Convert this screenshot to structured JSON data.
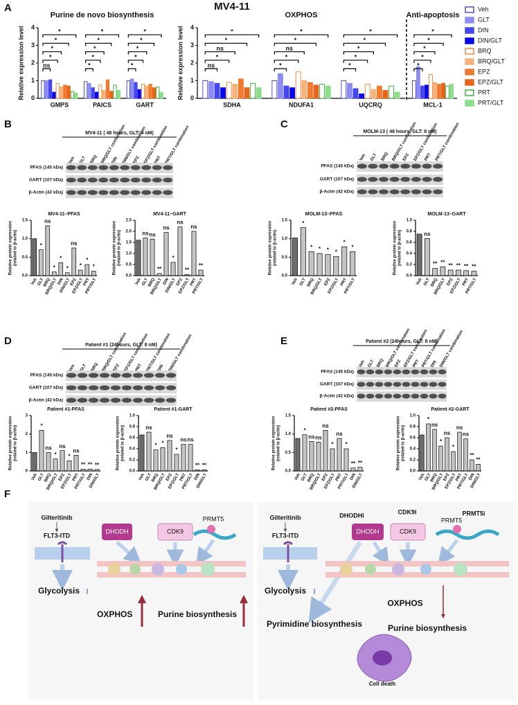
{
  "figure_title": "MV4-11",
  "panel_labels": [
    "A",
    "B",
    "C",
    "D",
    "E",
    "F"
  ],
  "chart_data": [
    {
      "type": "grouped_bar",
      "title": "Purine de novo biosynthesis",
      "ylabel": "Relative expression level",
      "categories": [
        "GMPS",
        "PAICS",
        "GART"
      ],
      "ylim": [
        0,
        4
      ],
      "yticks": [
        0,
        1,
        2,
        3,
        4
      ],
      "legend": "right",
      "series": [
        {
          "name": "Veh",
          "color": "#4b4bd8",
          "hollow": true,
          "values": [
            1.0,
            0.95,
            1.0
          ]
        },
        {
          "name": "GLT",
          "color": "#8c8cf2",
          "hollow": false,
          "values": [
            1.0,
            0.85,
            1.1
          ]
        },
        {
          "name": "DIN",
          "color": "#4646f0",
          "hollow": false,
          "values": [
            1.05,
            0.6,
            0.9
          ]
        },
        {
          "name": "DIN/GLT",
          "color": "#0a0ae6",
          "hollow": false,
          "values": [
            0.35,
            0.35,
            0.5
          ]
        },
        {
          "name": "BRQ",
          "color": "#f08a3c",
          "hollow": true,
          "values": [
            0.85,
            0.75,
            0.8
          ]
        },
        {
          "name": "BRQ/GLT",
          "color": "#f5b27a",
          "hollow": false,
          "values": [
            0.65,
            0.45,
            0.7
          ]
        },
        {
          "name": "EPZ",
          "color": "#f07a30",
          "hollow": false,
          "values": [
            0.75,
            1.05,
            0.8
          ]
        },
        {
          "name": "EPZ/GLT",
          "color": "#e8641a",
          "hollow": false,
          "values": [
            0.7,
            0.4,
            0.6
          ]
        },
        {
          "name": "PRT",
          "color": "#3cb43c",
          "hollow": true,
          "values": [
            0.4,
            0.75,
            0.65
          ]
        },
        {
          "name": "PRT/GLT",
          "color": "#8cde8c",
          "hollow": false,
          "values": [
            0.3,
            0.45,
            0.35
          ]
        }
      ],
      "significance": [
        [
          "ns",
          "*",
          "*",
          "*",
          "*"
        ],
        [
          "*",
          "*",
          "*",
          "*",
          "*"
        ],
        [
          "*",
          "*",
          "*",
          "*",
          "*"
        ]
      ]
    },
    {
      "type": "grouped_bar",
      "title": "OXPHOS",
      "ylabel": "Relative expression level",
      "categories": [
        "SDHA",
        "NDUFA1",
        "UQCRQ"
      ],
      "ylim": [
        0,
        4
      ],
      "yticks": [
        0,
        1,
        2,
        3,
        4
      ],
      "series": [
        {
          "color": "#4b4bd8",
          "hollow": true,
          "values": [
            1.0,
            1.0,
            1.0
          ]
        },
        {
          "color": "#8c8cf2",
          "hollow": false,
          "values": [
            0.95,
            1.4,
            0.85
          ]
        },
        {
          "color": "#4646f0",
          "hollow": false,
          "values": [
            0.85,
            0.7,
            0.55
          ]
        },
        {
          "color": "#0a0ae6",
          "hollow": false,
          "values": [
            0.6,
            0.6,
            0.25
          ]
        },
        {
          "color": "#f08a3c",
          "hollow": true,
          "values": [
            0.9,
            1.5,
            0.8
          ]
        },
        {
          "color": "#f5b27a",
          "hollow": false,
          "values": [
            0.8,
            1.0,
            0.5
          ]
        },
        {
          "color": "#f07a30",
          "hollow": false,
          "values": [
            1.1,
            0.9,
            0.7
          ]
        },
        {
          "color": "#e8641a",
          "hollow": false,
          "values": [
            0.6,
            0.75,
            0.45
          ]
        },
        {
          "color": "#3cb43c",
          "hollow": true,
          "values": [
            0.85,
            0.8,
            0.7
          ]
        },
        {
          "color": "#8cde8c",
          "hollow": false,
          "values": [
            0.6,
            0.7,
            0.35
          ]
        }
      ],
      "significance": [
        [
          "ns",
          "*",
          "ns",
          "*",
          "*"
        ],
        [
          "*",
          "*",
          "ns",
          "*",
          "*"
        ],
        [
          "*",
          "*",
          "*",
          "*",
          "*"
        ]
      ]
    },
    {
      "type": "grouped_bar",
      "title": "Anti-apoptosis",
      "categories": [
        "MCL-1"
      ],
      "ylim": [
        0,
        4
      ],
      "series": [
        {
          "color": "#4b4bd8",
          "hollow": true,
          "values": [
            1.0
          ]
        },
        {
          "color": "#8c8cf2",
          "hollow": false,
          "values": [
            1.8
          ]
        },
        {
          "color": "#4646f0",
          "hollow": false,
          "values": [
            0.7
          ]
        },
        {
          "color": "#0a0ae6",
          "hollow": false,
          "values": [
            0.75
          ]
        },
        {
          "color": "#f08a3c",
          "hollow": true,
          "values": [
            1.35
          ]
        },
        {
          "color": "#f5b27a",
          "hollow": false,
          "values": [
            0.9
          ]
        },
        {
          "color": "#f07a30",
          "hollow": false,
          "values": [
            0.8
          ]
        },
        {
          "color": "#e8641a",
          "hollow": false,
          "values": [
            0.85
          ]
        },
        {
          "color": "#3cb43c",
          "hollow": true,
          "values": [
            0.7
          ]
        },
        {
          "color": "#8cde8c",
          "hollow": false,
          "values": [
            0.8
          ]
        }
      ],
      "significance": [
        [
          "*",
          "*",
          "*",
          "*",
          "*"
        ]
      ]
    },
    {
      "type": "bar",
      "title": "MV4-11–PFAS",
      "ylabel": [
        "Relative protein expression",
        "(related to β-actin)"
      ],
      "categories": [
        "Veh",
        "GLT",
        "BRQ",
        "BRQ/GLT",
        "DIN",
        "DIN/GLT",
        "EPZ",
        "EPZ/GLT",
        "PRT",
        "PRT/GLT"
      ],
      "values": [
        1.0,
        0.7,
        1.35,
        0.1,
        0.35,
        0.08,
        0.75,
        0.15,
        0.3,
        0.12
      ],
      "significance": [
        null,
        "*",
        "ns",
        "*",
        "*",
        "*",
        "ns",
        "*",
        "*",
        "*"
      ],
      "ylim": [
        0,
        1.5
      ],
      "yticks": [
        {
          "value": 0,
          "label": "0.0"
        },
        0.5,
        {
          "value": 1,
          "label": "1.0"
        },
        1.5
      ],
      "color": "#c4c4c4",
      "control_color": "#6e6e6e"
    },
    {
      "type": "bar",
      "title": "MV4-11–GART",
      "ylabel": [
        "Relative protein expression",
        "(related to β-actin)"
      ],
      "categories": [
        "Veh",
        "GLT",
        "BRQ",
        "BRQ/GLT",
        "DIN",
        "DIN/GLT",
        "EPZ",
        "EPZ/GLT",
        "PRT",
        "PRT/GLT"
      ],
      "values": [
        1.6,
        1.7,
        1.65,
        0.1,
        1.95,
        0.6,
        2.2,
        0.05,
        2.0,
        0.25
      ],
      "significance": [
        null,
        "ns",
        "ns",
        "**",
        "ns",
        "*",
        "ns",
        "**",
        "ns",
        "**"
      ],
      "ylim": [
        0,
        2.5
      ],
      "yticks": [
        {
          "value": 0,
          "label": "0.0"
        },
        0.5,
        {
          "value": 1,
          "label": "1.0"
        },
        1.5,
        {
          "value": 2,
          "label": "2.0"
        },
        2.5
      ],
      "color": "#c4c4c4",
      "control_color": "#6e6e6e"
    },
    {
      "type": "bar",
      "title": "MOLM-13–PFAS",
      "ylabel": [
        "Relative protein expression",
        "(related to β-actin)"
      ],
      "categories": [
        "Veh",
        "GLT",
        "BRQ",
        "BRQ/GLT",
        "EPZ",
        "EPZ/GLT",
        "PRT",
        "PRT/GLT"
      ],
      "values": [
        1.02,
        1.3,
        0.65,
        0.6,
        0.57,
        0.52,
        0.78,
        0.65
      ],
      "significance": [
        null,
        "*",
        "*",
        "*",
        "*",
        "*",
        "*",
        "*"
      ],
      "ylim": [
        0,
        1.5
      ],
      "yticks": [
        {
          "value": 0,
          "label": "0.0"
        },
        0.5,
        {
          "value": 1,
          "label": "1.0"
        },
        1.5
      ],
      "color": "#c4c4c4",
      "control_color": "#6e6e6e"
    },
    {
      "type": "bar",
      "title": "MOLM-13–GART",
      "ylabel": [
        "Relative protein expression",
        "(related to β-actin)"
      ],
      "categories": [
        "Veh",
        "GLT",
        "BRQ",
        "BRQ/GLT",
        "EPZ",
        "EPZ/GLT",
        "PRT",
        "PRT/GLT"
      ],
      "values": [
        0.75,
        0.67,
        0.13,
        0.16,
        0.1,
        0.1,
        0.09,
        0.08
      ],
      "significance": [
        null,
        "ns",
        "**",
        "**",
        "**",
        "**",
        "**",
        "**"
      ],
      "ylim": [
        0,
        1
      ],
      "yticks": [
        {
          "value": 0,
          "label": "0.0"
        },
        0.2,
        0.4,
        0.6,
        0.8,
        {
          "value": 1,
          "label": "1.0"
        }
      ],
      "color": "#c4c4c4",
      "control_color": "#6e6e6e"
    },
    {
      "type": "bar",
      "title": "Patient #1-PFAS",
      "ylabel": [
        "Relative protein expression",
        "(related to β-actin)"
      ],
      "categories": [
        "Veh",
        "GLT",
        "BRQ",
        "BRQ/GLT",
        "EPZ",
        "EPZ/GLT",
        "PRT",
        "PRT/GLT",
        "DIN",
        "DIN/GLT"
      ],
      "values": [
        1.0,
        2.2,
        1.0,
        0.65,
        1.1,
        0.55,
        0.85,
        0.1,
        0.1,
        0.08
      ],
      "significance": [
        null,
        "*",
        "ns",
        "*",
        "ns",
        "*",
        "ns",
        "**",
        "**",
        "**"
      ],
      "ylim": [
        0,
        3
      ],
      "yticks": [
        0,
        1,
        2,
        3
      ],
      "color": "#c4c4c4",
      "control_color": "#6e6e6e"
    },
    {
      "type": "bar",
      "title": "Patient #1-GART",
      "ylabel": [
        "Relative protein expression",
        "(related to β-actin)"
      ],
      "categories": [
        "Veh",
        "GLT",
        "BRQ",
        "BRQ/GLT",
        "EPZ",
        "EPZ/GLT",
        "PRT",
        "PRT/GLT",
        "DIN",
        "DIN/GLT"
      ],
      "values": [
        0.65,
        0.7,
        0.38,
        0.42,
        0.55,
        0.3,
        0.48,
        0.48,
        0.02,
        0.02
      ],
      "significance": [
        null,
        "ns",
        "*",
        "*",
        "ns",
        "*",
        "ns",
        "ns",
        "**",
        "**"
      ],
      "ylim": [
        0,
        1
      ],
      "yticks": [
        {
          "value": 0,
          "label": "0.0"
        },
        0.2,
        0.4,
        0.6,
        0.8,
        {
          "value": 1,
          "label": "1.0"
        }
      ],
      "color": "#c4c4c4",
      "control_color": "#6e6e6e"
    },
    {
      "type": "bar",
      "title": "Patient #2-PFAS",
      "ylabel": [
        "Relative protein expression",
        "(related to β-actin)"
      ],
      "categories": [
        "Veh",
        "GLT",
        "BRQ",
        "BRQ/GLT",
        "EPZ",
        "EPZ/GLT",
        "PRT",
        "PRT/GLT",
        "DIN",
        "DIN/GLT"
      ],
      "values": [
        0.88,
        0.98,
        0.8,
        0.78,
        1.1,
        0.6,
        0.88,
        0.6,
        0.08,
        0.1
      ],
      "significance": [
        null,
        "*",
        "ns",
        "ns",
        "ns",
        "*",
        "ns",
        "*",
        "**",
        "**"
      ],
      "ylim": [
        0,
        1.5
      ],
      "yticks": [
        {
          "value": 0,
          "label": "0.0"
        },
        0.5,
        {
          "value": 1,
          "label": "1.0"
        },
        1.5
      ],
      "color": "#c4c4c4",
      "control_color": "#6e6e6e"
    },
    {
      "type": "bar",
      "title": "Patient #2-GART",
      "ylabel": [
        "Relative protein expression",
        "(related to β-actin)"
      ],
      "categories": [
        "Veh",
        "GLT",
        "BRQ",
        "BRQ/GLT",
        "EPZ",
        "EPZ/GLT",
        "PRT",
        "PRT/GLT",
        "DIN",
        "DIN/GLT"
      ],
      "values": [
        0.65,
        0.85,
        0.75,
        0.45,
        0.6,
        0.35,
        0.7,
        0.58,
        0.2,
        0.12
      ],
      "significance": [
        null,
        "*",
        "ns",
        "*",
        "ns",
        "*",
        "ns",
        "ns",
        "**",
        "**"
      ],
      "ylim": [
        0,
        1
      ],
      "yticks": [
        {
          "value": 0,
          "label": "0.0"
        },
        0.2,
        0.4,
        0.6,
        0.8,
        {
          "value": 1,
          "label": "1.0"
        }
      ],
      "color": "#c4c4c4",
      "control_color": "#6e6e6e"
    }
  ],
  "blots": [
    {
      "title": "MV4-11 ( 48 hours, GLT: 4 nM)",
      "lanes": [
        "Veh",
        "GLT",
        "BRQ",
        "BRQ/GLT combination",
        "DIN",
        "DIN/GLT combination",
        "EPZ",
        "EPZ/GLT combination",
        "PRT",
        "PRT/GLT combination"
      ],
      "rows": [
        "PFAS (145 kDa)",
        "GART (107 kDa)",
        "β-Actin (42 kDa)"
      ]
    },
    {
      "title": "MOLM-13 ( 48 hours, GLT: 8 nM)",
      "lanes": [
        "Veh",
        "GLT",
        "BRQ",
        "BRQ/GLT combination",
        "EPZ",
        "EPZ/GLT combination",
        "PRT",
        "PRT/GLT combination"
      ],
      "rows": [
        "PFAS (145 kDa)",
        "GART (107 kDa)",
        "β-Actin (42 kDa)"
      ]
    },
    {
      "title": "Patient #1 (24hours, GLT: 8 nM)",
      "lanes": [
        "Veh",
        "GLT",
        "BRQ",
        "BRQ/GLT combination",
        "EPZ",
        "EPZ/GLT combination",
        "PRT",
        "PRT/GLT combination",
        "DIN",
        "DIN/GLT combination"
      ],
      "rows": [
        "PFAS (145 kDa)",
        "GART (107 kDa)",
        "β-Actin (42 kDa)"
      ]
    },
    {
      "title": "Patient #2 (24hours, GLT: 8 nM)",
      "lanes": [
        "Veh",
        "GLT",
        "BRQ",
        "BRQ/GLT combination",
        "EPZ",
        "EPZ/GLT combination",
        "PRT",
        "PRT/GLT combination",
        "DIN",
        "DIN/GLT combination"
      ],
      "rows": [
        "PFAS (145 kDa)",
        "GART (107 kDa)",
        "β-Actin (42 kDa)"
      ]
    }
  ],
  "diagram": {
    "left": {
      "drug": "Gilteritinib",
      "target": "FLT3-ITD",
      "glycolysis": "Glycolysis",
      "dhodh": "DHODH",
      "cdk9": "CDK9",
      "prmt5": "PRMT5",
      "oxphos": "OXPHOS",
      "purine": "Purine biosynthesis"
    },
    "right": {
      "drug": "Gilteritinib",
      "target": "FLT3-ITD",
      "glycolysis": "Glycolysis",
      "dhodh_inhibitor": "DHODHi",
      "dhodh": "DHODH",
      "cdk9_inhibitor": "CDK9i",
      "cdk9": "CDK9",
      "prmt5_inhibitor": "PRMT5i",
      "prmt5": "PRMT5",
      "oxphos": "OXPHOS",
      "pyrimidine": "Pyrimidine biosynthesis",
      "purine": "Purine biosynthesis",
      "outcome": "Cell death"
    }
  }
}
